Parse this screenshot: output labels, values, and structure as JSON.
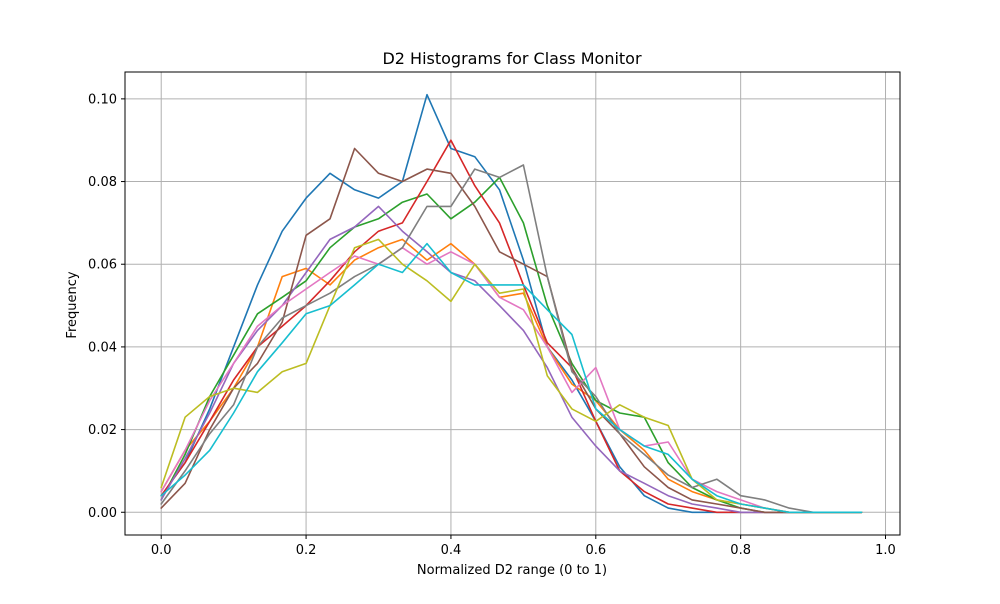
{
  "chart_data": {
    "type": "line",
    "title": "D2 Histograms for Class Monitor",
    "xlabel": "Normalized D2 range (0 to 1)",
    "ylabel": "Frequency",
    "xlim": [
      -0.05,
      1.02
    ],
    "ylim": [
      -0.0055,
      0.1065
    ],
    "xticks": [
      0.0,
      0.2,
      0.4,
      0.6,
      0.8,
      1.0
    ],
    "xtick_labels": [
      "0.0",
      "0.2",
      "0.4",
      "0.6",
      "0.8",
      "1.0"
    ],
    "yticks": [
      0.0,
      0.02,
      0.04,
      0.06,
      0.08,
      0.1
    ],
    "ytick_labels": [
      "0.00",
      "0.02",
      "0.04",
      "0.06",
      "0.08",
      "0.10"
    ],
    "grid": true,
    "legend": "none",
    "x": [
      0.0,
      0.033,
      0.067,
      0.1,
      0.133,
      0.167,
      0.2,
      0.233,
      0.267,
      0.3,
      0.333,
      0.367,
      0.4,
      0.433,
      0.467,
      0.5,
      0.533,
      0.567,
      0.6,
      0.633,
      0.667,
      0.7,
      0.733,
      0.767,
      0.8,
      0.833,
      0.867,
      0.9,
      0.933,
      0.967
    ],
    "series": [
      {
        "color": "#1f77b4",
        "values": [
          0.004,
          0.012,
          0.025,
          0.04,
          0.055,
          0.068,
          0.076,
          0.082,
          0.078,
          0.076,
          0.08,
          0.101,
          0.088,
          0.086,
          0.078,
          0.061,
          0.04,
          0.032,
          0.022,
          0.011,
          0.004,
          0.001,
          0.0,
          0.0,
          0.0,
          0.0,
          0.0,
          0.0,
          0.0,
          0.0
        ]
      },
      {
        "color": "#ff7f0e",
        "values": [
          0.005,
          0.015,
          0.022,
          0.03,
          0.04,
          0.057,
          0.059,
          0.055,
          0.061,
          0.064,
          0.066,
          0.061,
          0.065,
          0.06,
          0.052,
          0.053,
          0.04,
          0.031,
          0.027,
          0.02,
          0.015,
          0.008,
          0.005,
          0.003,
          0.002,
          0.001,
          0.0,
          0.0,
          0.0,
          0.0
        ]
      },
      {
        "color": "#2ca02c",
        "values": [
          0.003,
          0.014,
          0.028,
          0.038,
          0.048,
          0.052,
          0.056,
          0.064,
          0.069,
          0.071,
          0.075,
          0.077,
          0.071,
          0.075,
          0.081,
          0.07,
          0.05,
          0.036,
          0.027,
          0.024,
          0.023,
          0.012,
          0.006,
          0.003,
          0.001,
          0.0,
          0.0,
          0.0,
          0.0,
          0.0
        ]
      },
      {
        "color": "#d62728",
        "values": [
          0.004,
          0.012,
          0.022,
          0.032,
          0.04,
          0.045,
          0.05,
          0.056,
          0.063,
          0.068,
          0.07,
          0.08,
          0.09,
          0.079,
          0.07,
          0.055,
          0.041,
          0.035,
          0.022,
          0.01,
          0.005,
          0.002,
          0.001,
          0.0,
          0.0,
          0.0,
          0.0,
          0.0,
          0.0,
          0.0
        ]
      },
      {
        "color": "#9467bd",
        "values": [
          0.003,
          0.013,
          0.024,
          0.036,
          0.044,
          0.05,
          0.058,
          0.066,
          0.069,
          0.074,
          0.068,
          0.063,
          0.058,
          0.056,
          0.05,
          0.044,
          0.035,
          0.023,
          0.016,
          0.01,
          0.007,
          0.004,
          0.002,
          0.001,
          0.0,
          0.0,
          0.0,
          0.0,
          0.0,
          0.0
        ]
      },
      {
        "color": "#8c564b",
        "values": [
          0.001,
          0.007,
          0.02,
          0.03,
          0.036,
          0.046,
          0.067,
          0.071,
          0.088,
          0.082,
          0.08,
          0.083,
          0.082,
          0.074,
          0.063,
          0.06,
          0.057,
          0.035,
          0.025,
          0.019,
          0.011,
          0.006,
          0.003,
          0.002,
          0.001,
          0.0,
          0.0,
          0.0,
          0.0,
          0.0
        ]
      },
      {
        "color": "#e377c2",
        "values": [
          0.005,
          0.015,
          0.027,
          0.036,
          0.045,
          0.05,
          0.054,
          0.058,
          0.062,
          0.06,
          0.064,
          0.06,
          0.063,
          0.06,
          0.052,
          0.049,
          0.04,
          0.029,
          0.035,
          0.02,
          0.016,
          0.017,
          0.008,
          0.005,
          0.003,
          0.001,
          0.0,
          0.0,
          0.0,
          0.0
        ]
      },
      {
        "color": "#7f7f7f",
        "values": [
          0.002,
          0.01,
          0.019,
          0.026,
          0.04,
          0.047,
          0.05,
          0.053,
          0.057,
          0.06,
          0.064,
          0.074,
          0.074,
          0.083,
          0.081,
          0.084,
          0.057,
          0.034,
          0.028,
          0.019,
          0.014,
          0.009,
          0.006,
          0.008,
          0.004,
          0.003,
          0.001,
          0.0,
          0.0,
          0.0
        ]
      },
      {
        "color": "#bcbd22",
        "values": [
          0.006,
          0.023,
          0.028,
          0.03,
          0.029,
          0.034,
          0.036,
          0.05,
          0.064,
          0.066,
          0.06,
          0.056,
          0.051,
          0.06,
          0.053,
          0.054,
          0.033,
          0.025,
          0.022,
          0.026,
          0.023,
          0.021,
          0.008,
          0.003,
          0.002,
          0.001,
          0.0,
          0.0,
          0.0,
          0.0
        ]
      },
      {
        "color": "#17becf",
        "values": [
          0.004,
          0.009,
          0.015,
          0.024,
          0.034,
          0.041,
          0.048,
          0.05,
          0.055,
          0.06,
          0.058,
          0.065,
          0.058,
          0.055,
          0.055,
          0.055,
          0.049,
          0.043,
          0.025,
          0.02,
          0.016,
          0.014,
          0.008,
          0.004,
          0.002,
          0.001,
          0.0,
          0.0,
          0.0,
          0.0
        ]
      }
    ]
  }
}
